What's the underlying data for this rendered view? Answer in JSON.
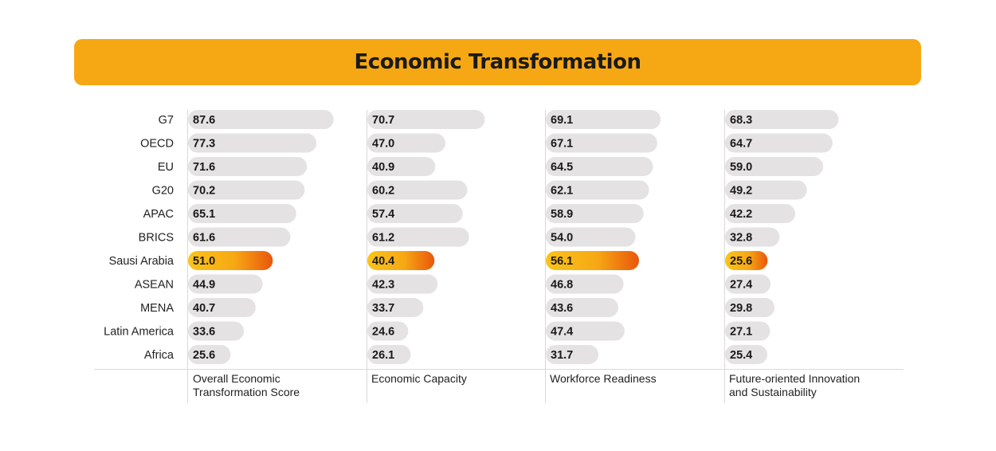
{
  "title": "Economic Transformation",
  "colors": {
    "title_bg": "#f6a814",
    "bar_default": "#e4e2e3",
    "highlight_start": "#fbc41a",
    "highlight_end": "#e9560c",
    "divider": "#d9d9d9"
  },
  "chart_data": {
    "type": "bar",
    "orientation": "horizontal",
    "title": "Economic Transformation",
    "categories": [
      "G7",
      "OECD",
      "EU",
      "G20",
      "APAC",
      "BRICS",
      "Sausi Arabia",
      "ASEAN",
      "MENA",
      "Latin America",
      "Africa"
    ],
    "highlight_category": "Sausi Arabia",
    "value_labels": [
      [
        "87.6",
        "77.3",
        "71.6",
        "70.2",
        "65.1",
        "61.6",
        "51.0",
        "44.9",
        "40.7",
        "33.6",
        "25.6"
      ],
      [
        "70.7",
        "47.0",
        "40.9",
        "60.2",
        "57.4",
        "61.2",
        "40.4",
        "42.3",
        "33.7",
        "24.6",
        "26.1"
      ],
      [
        "69.1",
        "67.1",
        "64.5",
        "62.1",
        "58.9",
        "54.0",
        "56.1",
        "46.8",
        "43.6",
        "47.4",
        "31.7"
      ],
      [
        "68.3",
        "64.7",
        "59.0",
        "49.2",
        "42.2",
        "32.8",
        "25.6",
        "27.4",
        "29.8",
        "27.1",
        "25.4"
      ]
    ],
    "series": [
      {
        "name": "Overall Economic Transformation Score",
        "name_lines": [
          "Overall Economic",
          "Transformation Score"
        ],
        "values": [
          87.6,
          77.3,
          71.6,
          70.2,
          65.1,
          61.6,
          51.0,
          44.9,
          40.7,
          33.6,
          25.6
        ]
      },
      {
        "name": "Economic Capacity",
        "name_lines": [
          "Economic Capacity"
        ],
        "values": [
          70.7,
          47.0,
          40.9,
          60.2,
          57.4,
          61.2,
          40.4,
          42.3,
          33.7,
          24.6,
          26.1
        ]
      },
      {
        "name": "Workforce Readiness",
        "name_lines": [
          "Workforce Readiness"
        ],
        "values": [
          69.1,
          67.1,
          64.5,
          62.1,
          58.9,
          54.0,
          56.1,
          46.8,
          43.6,
          47.4,
          31.7
        ]
      },
      {
        "name": "Future-oriented Innovation and Sustainability",
        "name_lines": [
          "Future-oriented Innovation",
          "and  Sustainability"
        ],
        "values": [
          68.3,
          64.7,
          59.0,
          49.2,
          42.2,
          32.8,
          25.6,
          27.4,
          29.8,
          27.1,
          25.4
        ]
      }
    ],
    "xlim": [
      0,
      100
    ],
    "grid": false,
    "legend": "none"
  }
}
